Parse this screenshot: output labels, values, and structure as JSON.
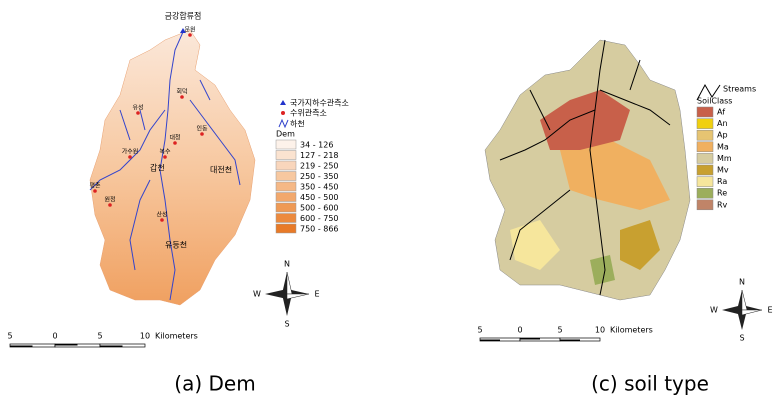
{
  "dem_panel": {
    "outlet_label": "금강합류점",
    "stations": [
      "문원",
      "회덕",
      "유성",
      "대청",
      "인동",
      "가수원",
      "복수",
      "평촌",
      "원정",
      "산성"
    ],
    "rivers": [
      "갑천",
      "대전천",
      "유등천"
    ],
    "legend": {
      "groundwater": "국가지하수관측소",
      "water_level": "수위관측소",
      "stream": "하천",
      "title": "Dem",
      "classes": [
        "34 - 126",
        "127 - 218",
        "219 - 250",
        "250 - 350",
        "350 - 450",
        "450 - 500",
        "500 - 600",
        "600 - 750",
        "750 - 866"
      ]
    },
    "compass": {
      "n": "N",
      "s": "S",
      "e": "E",
      "w": "W"
    },
    "scale": {
      "ticks": [
        "5",
        "0",
        "5",
        "10"
      ],
      "unit": "Kilometers"
    },
    "caption": "(a)  Dem"
  },
  "soil_panel": {
    "legend": {
      "streams": "Streams",
      "title": "SoilClass",
      "classes": [
        {
          "name": "Af",
          "color": "#c8604a"
        },
        {
          "name": "An",
          "color": "#f0d010"
        },
        {
          "name": "Ap",
          "color": "#e6c472"
        },
        {
          "name": "Ma",
          "color": "#f0b060"
        },
        {
          "name": "Mm",
          "color": "#d6cca0"
        },
        {
          "name": "Mv",
          "color": "#c8a030"
        },
        {
          "name": "Ra",
          "color": "#f6e69c"
        },
        {
          "name": "Re",
          "color": "#9cae5c"
        },
        {
          "name": "Rv",
          "color": "#c08468"
        }
      ]
    },
    "compass": {
      "n": "N",
      "s": "S",
      "e": "E",
      "w": "W"
    },
    "scale": {
      "ticks": [
        "5",
        "0",
        "5",
        "10"
      ],
      "unit": "Kilometers"
    },
    "caption": "(c)  soil type"
  }
}
